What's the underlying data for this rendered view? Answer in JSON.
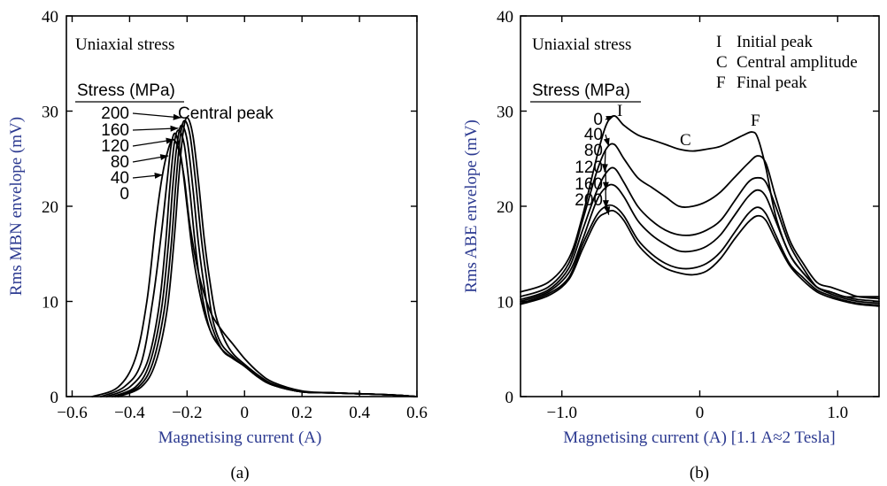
{
  "chart_data": [
    {
      "panel": "(a)",
      "type": "line",
      "xlabel": "Magnetising current  (A)",
      "ylabel": "Rms  MBN  envelope  (mV)",
      "xlim": [
        -0.62,
        0.6
      ],
      "ylim": [
        0,
        40
      ],
      "xticks": [
        -0.6,
        -0.4,
        -0.2,
        0,
        0.2,
        0.4,
        0.6
      ],
      "xtick_labels": [
        "−0.6",
        "−0.4",
        "−0.2",
        "0",
        "0.2",
        "0.4",
        "0.6"
      ],
      "yticks": [
        0,
        10,
        20,
        30,
        40
      ],
      "ytick_labels": [
        "0",
        "10",
        "20",
        "30",
        "40"
      ],
      "annotations": {
        "condition": "Uniaxial stress",
        "legend_title": "Stress (MPa)",
        "peak_label": "Central peak"
      },
      "series": [
        {
          "name": "0",
          "x": [
            -0.53,
            -0.44,
            -0.38,
            -0.34,
            -0.31,
            -0.29,
            -0.27,
            -0.25,
            -0.23,
            -0.21,
            -0.19,
            -0.16,
            -0.12,
            -0.08,
            -0.04,
            0,
            0.05,
            0.1,
            0.2,
            0.3,
            0.4,
            0.5,
            0.6
          ],
          "y": [
            0,
            1,
            4,
            10,
            18,
            22.5,
            25.5,
            27,
            26,
            23,
            18,
            13,
            9,
            7,
            5.5,
            4,
            2.5,
            1.5,
            0.6,
            0.4,
            0.3,
            0.2,
            0
          ]
        },
        {
          "name": "40",
          "x": [
            -0.5,
            -0.42,
            -0.36,
            -0.32,
            -0.29,
            -0.27,
            -0.255,
            -0.24,
            -0.22,
            -0.2,
            -0.18,
            -0.15,
            -0.12,
            -0.08,
            -0.04,
            0,
            0.05,
            0.1,
            0.2,
            0.3,
            0.4,
            0.5,
            0.6
          ],
          "y": [
            0,
            1,
            3.5,
            10,
            17,
            22.5,
            26.5,
            27.6,
            25,
            20,
            15,
            10,
            7,
            5,
            4,
            3.2,
            2,
            1.2,
            0.5,
            0.4,
            0.3,
            0.2,
            0
          ]
        },
        {
          "name": "80",
          "x": [
            -0.48,
            -0.4,
            -0.34,
            -0.3,
            -0.275,
            -0.26,
            -0.245,
            -0.23,
            -0.21,
            -0.19,
            -0.17,
            -0.15,
            -0.12,
            -0.08,
            -0.04,
            0,
            0.05,
            0.1,
            0.2,
            0.3,
            0.4,
            0.5,
            0.6
          ],
          "y": [
            0,
            1,
            3.5,
            9,
            16,
            22,
            26.5,
            28,
            26.5,
            21.5,
            15.5,
            11,
            7,
            5,
            4,
            3.2,
            2,
            1.2,
            0.5,
            0.4,
            0.3,
            0.2,
            0
          ]
        },
        {
          "name": "120",
          "x": [
            -0.46,
            -0.38,
            -0.33,
            -0.29,
            -0.265,
            -0.25,
            -0.235,
            -0.22,
            -0.2,
            -0.18,
            -0.16,
            -0.14,
            -0.12,
            -0.08,
            -0.04,
            0,
            0.05,
            0.1,
            0.2,
            0.3,
            0.4,
            0.5,
            0.6
          ],
          "y": [
            0,
            1,
            3.5,
            9,
            16,
            22,
            26.5,
            28.5,
            27,
            22,
            16,
            11.5,
            8,
            5,
            4,
            3.2,
            2,
            1.2,
            0.5,
            0.4,
            0.3,
            0.2,
            0
          ]
        },
        {
          "name": "160",
          "x": [
            -0.45,
            -0.37,
            -0.32,
            -0.28,
            -0.255,
            -0.24,
            -0.225,
            -0.21,
            -0.19,
            -0.17,
            -0.15,
            -0.13,
            -0.11,
            -0.08,
            -0.04,
            0,
            0.05,
            0.1,
            0.2,
            0.3,
            0.4,
            0.5,
            0.6
          ],
          "y": [
            0,
            1,
            3.5,
            9,
            16,
            22,
            27,
            29,
            27.5,
            22.5,
            16.5,
            12,
            8,
            5.5,
            4.2,
            3.2,
            2,
            1.2,
            0.5,
            0.4,
            0.3,
            0.2,
            0
          ]
        },
        {
          "name": "200",
          "x": [
            -0.44,
            -0.36,
            -0.31,
            -0.27,
            -0.245,
            -0.23,
            -0.215,
            -0.2,
            -0.18,
            -0.16,
            -0.14,
            -0.12,
            -0.1,
            -0.07,
            -0.04,
            0,
            0.05,
            0.1,
            0.2,
            0.3,
            0.4,
            0.5,
            0.6
          ],
          "y": [
            0,
            1,
            3.5,
            9,
            16.5,
            22.5,
            27.5,
            29.3,
            27.5,
            22.5,
            16.5,
            12,
            8.5,
            6,
            4.5,
            3.4,
            2.2,
            1.3,
            0.5,
            0.4,
            0.3,
            0.2,
            0
          ]
        }
      ],
      "arrow_order": [
        "200",
        "160",
        "120",
        "80",
        "40",
        "0"
      ]
    },
    {
      "panel": "(b)",
      "type": "line",
      "xlabel": "Magnetising current (A) [1.1 A≈2 Tesla]",
      "ylabel": "Rms  ABE  envelope  (mV)",
      "xlim": [
        -1.3,
        1.3
      ],
      "ylim": [
        0,
        40
      ],
      "xticks": [
        -1.0,
        0,
        1.0
      ],
      "xtick_labels": [
        "−1.0",
        "0",
        "1.0"
      ],
      "yticks": [
        0,
        10,
        20,
        30,
        40
      ],
      "ytick_labels": [
        "0",
        "10",
        "20",
        "30",
        "40"
      ],
      "annotations": {
        "condition": "Uniaxial stress",
        "legend_title": "Stress (MPa)",
        "label_I": "I",
        "label_C": "C",
        "label_F": "F",
        "key": [
          {
            "letter": "I",
            "text": "Initial peak"
          },
          {
            "letter": "C",
            "text": "Central amplitude"
          },
          {
            "letter": "F",
            "text": "Final peak"
          }
        ]
      },
      "series": [
        {
          "name": "0",
          "x": [
            -1.3,
            -1.1,
            -0.95,
            -0.85,
            -0.75,
            -0.68,
            -0.62,
            -0.55,
            -0.45,
            -0.35,
            -0.25,
            -0.15,
            -0.05,
            0.05,
            0.15,
            0.25,
            0.32,
            0.38,
            0.42,
            0.48,
            0.55,
            0.65,
            0.75,
            0.85,
            0.95,
            1.05,
            1.15,
            1.3
          ],
          "y": [
            11,
            12,
            14.5,
            19,
            25,
            28.5,
            29.5,
            28.5,
            27.5,
            27,
            26.5,
            26,
            25.8,
            26,
            26.3,
            27,
            27.5,
            27.8,
            27.2,
            24,
            19,
            15,
            13,
            11.5,
            11,
            10.5,
            10.5,
            10.5
          ]
        },
        {
          "name": "40",
          "x": [
            -1.3,
            -1.1,
            -0.95,
            -0.85,
            -0.75,
            -0.68,
            -0.62,
            -0.55,
            -0.45,
            -0.35,
            -0.25,
            -0.15,
            -0.05,
            0.05,
            0.15,
            0.25,
            0.35,
            0.42,
            0.48,
            0.55,
            0.65,
            0.75,
            0.85,
            0.95,
            1.05,
            1.15,
            1.3
          ],
          "y": [
            10.5,
            11.5,
            14,
            18.5,
            23.5,
            26,
            26.5,
            25,
            23,
            22,
            21,
            20,
            20,
            20.5,
            21.5,
            23,
            24.5,
            25.3,
            24.5,
            21,
            16.5,
            14,
            12,
            11.5,
            11,
            10.5,
            10.3
          ]
        },
        {
          "name": "80",
          "x": [
            -1.3,
            -1.1,
            -0.95,
            -0.85,
            -0.75,
            -0.68,
            -0.62,
            -0.55,
            -0.45,
            -0.35,
            -0.25,
            -0.15,
            -0.05,
            0.05,
            0.15,
            0.25,
            0.35,
            0.42,
            0.48,
            0.55,
            0.65,
            0.75,
            0.85,
            0.95,
            1.05,
            1.15,
            1.3
          ],
          "y": [
            10.2,
            11.2,
            13.5,
            17.5,
            21.5,
            23.5,
            24,
            22.5,
            20,
            18.5,
            17.5,
            17,
            17,
            17.5,
            18.5,
            20.5,
            22.5,
            23,
            22.5,
            20,
            16,
            13.5,
            11.5,
            11,
            10.5,
            10.2,
            10
          ]
        },
        {
          "name": "120",
          "x": [
            -1.3,
            -1.1,
            -0.95,
            -0.85,
            -0.75,
            -0.68,
            -0.62,
            -0.55,
            -0.45,
            -0.35,
            -0.25,
            -0.15,
            -0.05,
            0.05,
            0.15,
            0.25,
            0.35,
            0.42,
            0.48,
            0.55,
            0.65,
            0.75,
            0.85,
            0.95,
            1.05,
            1.15,
            1.3
          ],
          "y": [
            10,
            11,
            13,
            16.5,
            20.5,
            22,
            22.2,
            21,
            18.5,
            17,
            16,
            15.3,
            15.3,
            15.8,
            17,
            19,
            21,
            21.7,
            21,
            18.5,
            15,
            13,
            11.5,
            10.8,
            10.3,
            10,
            9.8
          ]
        },
        {
          "name": "160",
          "x": [
            -1.3,
            -1.1,
            -0.95,
            -0.85,
            -0.75,
            -0.68,
            -0.62,
            -0.55,
            -0.45,
            -0.35,
            -0.25,
            -0.15,
            -0.05,
            0.05,
            0.15,
            0.25,
            0.35,
            0.42,
            0.48,
            0.55,
            0.65,
            0.75,
            0.85,
            0.95,
            1.05,
            1.15,
            1.3
          ],
          "y": [
            9.8,
            10.8,
            12.5,
            16,
            19,
            20,
            20,
            19,
            16.5,
            15,
            14,
            13.5,
            13.5,
            14,
            15.2,
            17.2,
            19.2,
            19.9,
            19.2,
            17,
            14,
            12.5,
            11.2,
            10.6,
            10.1,
            9.8,
            9.6
          ]
        },
        {
          "name": "200",
          "x": [
            -1.3,
            -1.1,
            -0.95,
            -0.85,
            -0.75,
            -0.68,
            -0.62,
            -0.55,
            -0.45,
            -0.35,
            -0.25,
            -0.15,
            -0.05,
            0.05,
            0.15,
            0.25,
            0.35,
            0.42,
            0.48,
            0.55,
            0.65,
            0.75,
            0.85,
            0.95,
            1.05,
            1.15,
            1.3
          ],
          "y": [
            9.7,
            10.6,
            12.3,
            15.5,
            18.5,
            19.3,
            19.5,
            18.5,
            16,
            14.5,
            13.5,
            13,
            12.8,
            13.2,
            14.5,
            16.5,
            18.3,
            19,
            18.5,
            16.5,
            13.8,
            12.2,
            11,
            10.4,
            10,
            9.7,
            9.5
          ]
        }
      ],
      "arrow_order": [
        "0",
        "40",
        "80",
        "120",
        "160",
        "200"
      ]
    }
  ]
}
